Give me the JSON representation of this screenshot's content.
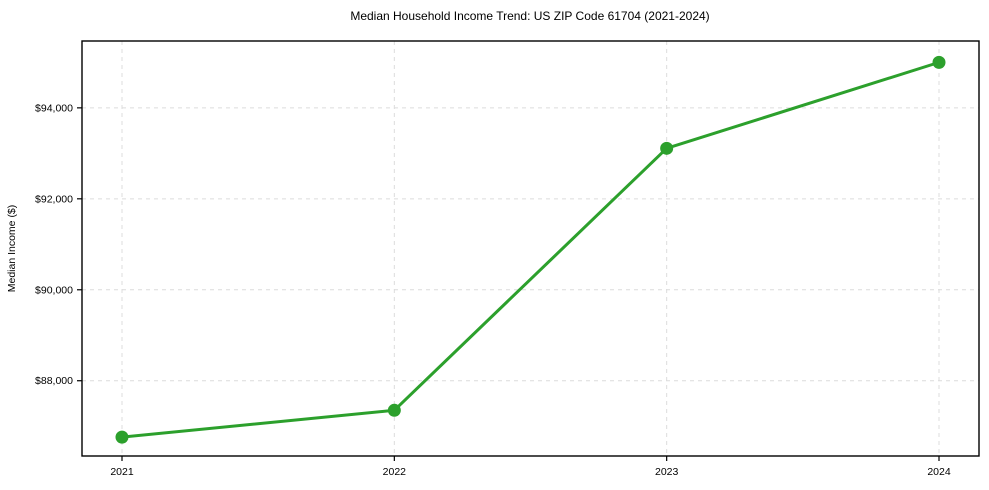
{
  "chart_data": {
    "type": "line",
    "title": "Median Household Income Trend: US ZIP Code 61704 (2021-2024)",
    "xlabel": "",
    "ylabel": "Median Income ($)",
    "categories": [
      "2021",
      "2022",
      "2023",
      "2024"
    ],
    "series": [
      {
        "name": "Median Household Income",
        "values": [
          86760,
          87350,
          93110,
          95000
        ],
        "color": "#2ca02c",
        "marker": "circle"
      }
    ],
    "y_ticks": [
      {
        "value": 88000,
        "label": "$88,000"
      },
      {
        "value": 90000,
        "label": "$90,000"
      },
      {
        "value": 92000,
        "label": "$92,000"
      },
      {
        "value": 94000,
        "label": "$94,000"
      }
    ],
    "ylim": [
      86345,
      95470
    ],
    "grid": {
      "visible": true,
      "style": "dashed",
      "color": "#dcdcdc"
    },
    "legend": "none",
    "axis_color": "#000000",
    "background": "#ffffff"
  }
}
